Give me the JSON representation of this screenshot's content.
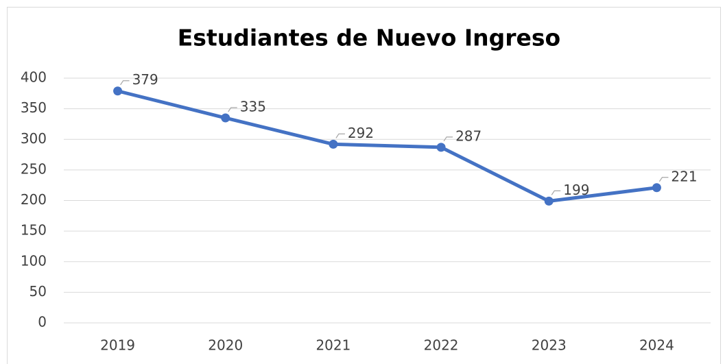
{
  "chart_data": {
    "type": "line",
    "title": "Estudiantes de Nuevo Ingreso",
    "categories": [
      "2019",
      "2020",
      "2021",
      "2022",
      "2023",
      "2024"
    ],
    "values": [
      379,
      335,
      292,
      287,
      199,
      221
    ],
    "color": "#4472c4",
    "ylim": [
      0,
      400
    ],
    "yticks": [
      0,
      50,
      100,
      150,
      200,
      250,
      300,
      350,
      400
    ],
    "grid": true,
    "data_labels": true
  }
}
